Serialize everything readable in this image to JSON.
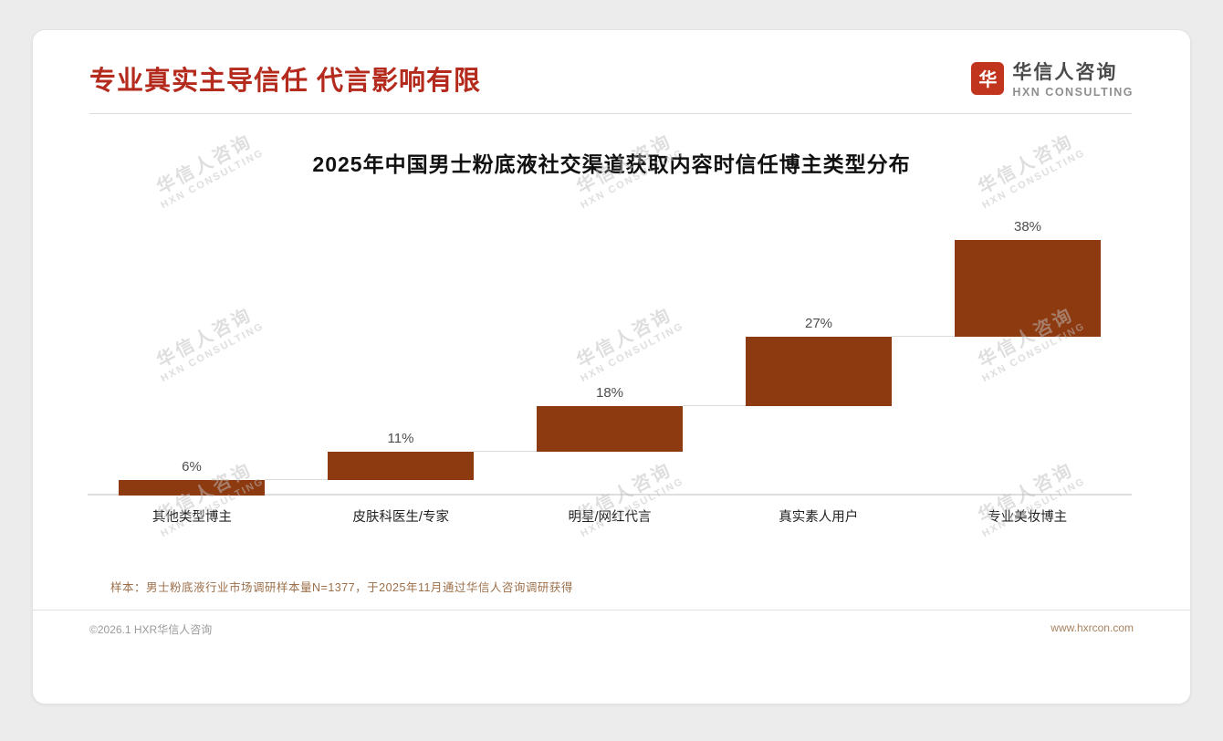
{
  "header": {
    "title": "专业真实主导信任 代言影响有限",
    "logo": {
      "glyph": "华",
      "name_cn": "华信人咨询",
      "name_en": "HXN CONSULTING"
    }
  },
  "chart_data": {
    "type": "bar",
    "subtype": "waterfall-ascending",
    "title": "2025年中国男士粉底液社交渠道获取内容时信任博主类型分布",
    "categories": [
      "其他类型博主",
      "皮肤科医生/专家",
      "明星/网红代言",
      "真实素人用户",
      "专业美妆博主"
    ],
    "values": [
      6,
      11,
      18,
      27,
      38
    ],
    "labels": [
      "6%",
      "11%",
      "18%",
      "27%",
      "38%"
    ],
    "ylim": [
      0,
      100
    ],
    "grid": false,
    "legend": "none",
    "bar_color": "#8D3A10",
    "baseline_color": "#DEDEDE"
  },
  "watermark": {
    "line1": "华信人咨询",
    "line2": "HXN CONSULTING"
  },
  "footnote": "样本：男士粉底液行业市场调研样本量N=1377，于2025年11月通过华信人咨询调研获得",
  "footer": {
    "copyright": "©2026.1 HXR华信人咨询",
    "website": "www.hxrcon.com"
  },
  "colors": {
    "accent_red": "#B42B1E",
    "bar_brown": "#8D3A10"
  }
}
